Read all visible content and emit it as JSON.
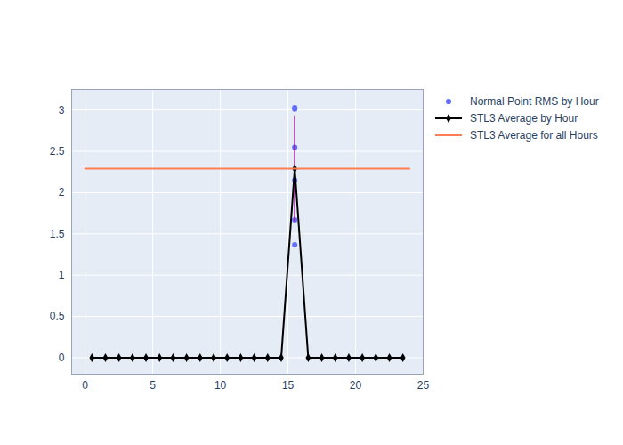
{
  "chart_data": {
    "type": "line",
    "xlim": [
      -1,
      25
    ],
    "xticks": [
      0,
      5,
      10,
      15,
      20,
      25
    ],
    "ylim": [
      -0.2,
      3.25
    ],
    "yticks": [
      0,
      0.5,
      1,
      1.5,
      2,
      2.5,
      3
    ],
    "grid": true,
    "legend": "right",
    "series": [
      {
        "name": "Normal Point RMS by Hour",
        "type": "scatter",
        "color": "#636efa",
        "marker": "circle",
        "x": [
          15.5,
          15.5,
          15.5,
          15.5,
          15.5,
          15.5
        ],
        "values": [
          3.03,
          3.01,
          2.55,
          2.15,
          1.67,
          1.37
        ]
      },
      {
        "name": "STL3 Average by Hour",
        "type": "line",
        "color": "#000000",
        "marker": "diamond",
        "x": [
          0.5,
          1.5,
          2.5,
          3.5,
          4.5,
          5.5,
          6.5,
          7.5,
          8.5,
          9.5,
          10.5,
          11.5,
          12.5,
          13.5,
          14.5,
          15.5,
          16.5,
          17.5,
          18.5,
          19.5,
          20.5,
          21.5,
          22.5,
          23.5
        ],
        "values": [
          0,
          0,
          0,
          0,
          0,
          0,
          0,
          0,
          0,
          0,
          0,
          0,
          0,
          0,
          0,
          2.29,
          0,
          0,
          0,
          0,
          0,
          0,
          0,
          0
        ],
        "error": [
          null,
          null,
          null,
          null,
          null,
          null,
          null,
          null,
          null,
          null,
          null,
          null,
          null,
          null,
          null,
          0.64,
          null,
          null,
          null,
          null,
          null,
          null,
          null,
          null
        ]
      },
      {
        "name": "STL3 Average for all Hours",
        "type": "line",
        "color": "#ff7f50",
        "x": [
          0,
          24
        ],
        "values": [
          2.29,
          2.29
        ]
      }
    ]
  }
}
